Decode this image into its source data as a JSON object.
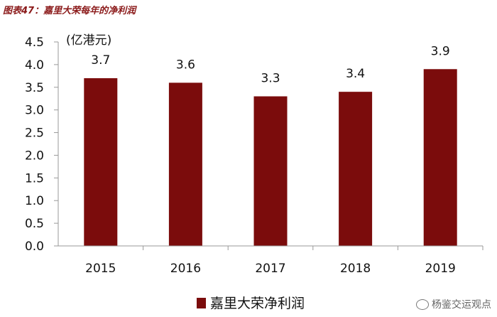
{
  "figure_title": "图表47：嘉里大荣每年的净利润",
  "watermark": "杨鉴交运观点",
  "colors": {
    "bar": "#7b0c0c",
    "title": "#8b1a1a",
    "axis": "#999999"
  },
  "chart_data": {
    "type": "bar",
    "categories": [
      "2015",
      "2016",
      "2017",
      "2018",
      "2019"
    ],
    "series": [
      {
        "name": "嘉里大荣净利润",
        "values": [
          3.7,
          3.6,
          3.3,
          3.4,
          3.9
        ]
      }
    ],
    "data_labels": [
      "3.7",
      "3.6",
      "3.3",
      "3.4",
      "3.9"
    ],
    "ylabel": "(亿港元)",
    "ylim": [
      0,
      4.5
    ],
    "yticks": [
      "0.0",
      "0.5",
      "1.0",
      "1.5",
      "2.0",
      "2.5",
      "3.0",
      "3.5",
      "4.0",
      "4.5"
    ],
    "grid": false,
    "legend_position": "bottom"
  }
}
